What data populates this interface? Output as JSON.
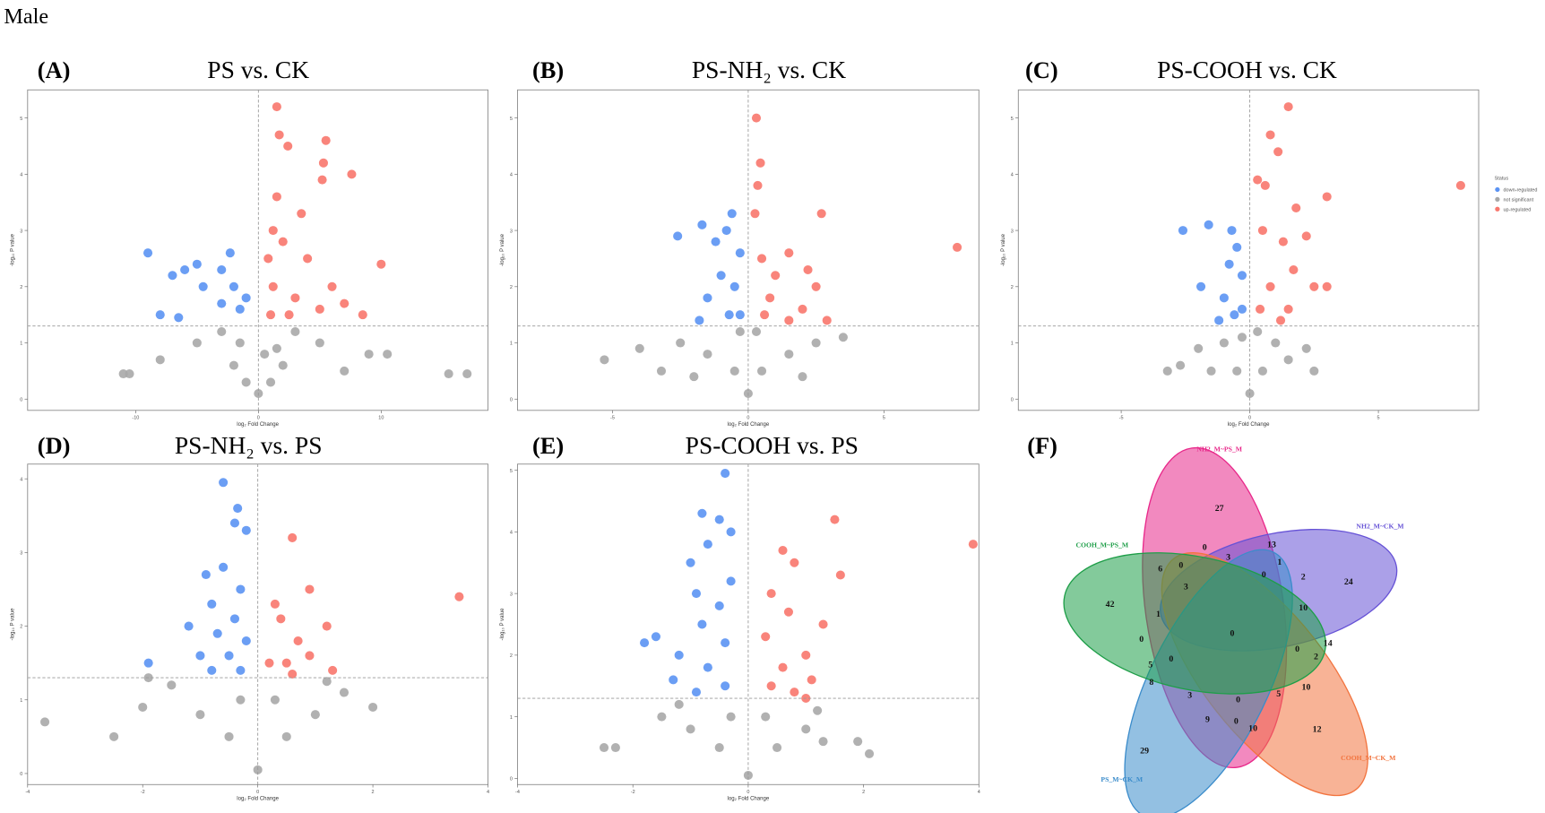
{
  "title": "Male",
  "chart_data": [
    {
      "type": "scatter",
      "panel": "(A)",
      "title": "PS vs. CK",
      "xlabel": "log₂ Fold Change",
      "ylabel": "-log₁₀ P value",
      "xlim": [
        -18.8,
        18.7
      ],
      "ylim": [
        -0.2,
        5.5
      ],
      "xticks": [
        -10,
        0,
        10
      ],
      "yticks": [
        0,
        1,
        2,
        3,
        4,
        5
      ],
      "hlines": [
        1.3
      ],
      "vlines": [
        0
      ],
      "series": [
        {
          "name": "not significant",
          "color": "#a8a8a8",
          "x": [
            -11,
            -10.5,
            -8,
            0,
            -2,
            2,
            -5,
            5,
            7,
            9,
            10.5,
            15.5,
            17,
            -1,
            1,
            3,
            -3,
            0.5,
            -1.5,
            1.5
          ],
          "values": [
            0.45,
            0.45,
            0.7,
            0.1,
            0.6,
            0.6,
            1.0,
            1.0,
            0.5,
            0.8,
            0.8,
            0.45,
            0.45,
            0.3,
            0.3,
            1.2,
            1.2,
            0.8,
            1.0,
            0.9
          ]
        },
        {
          "name": "down-regulated",
          "color": "#5b93f3",
          "x": [
            -9,
            -5,
            -3,
            -2.3,
            -6,
            -7,
            -2,
            -4.5,
            -3,
            -8,
            -6.5,
            -1.5,
            -1
          ],
          "values": [
            2.6,
            2.4,
            2.3,
            2.6,
            2.3,
            2.2,
            2.0,
            2.0,
            1.7,
            1.5,
            1.45,
            1.6,
            1.8
          ]
        },
        {
          "name": "up-regulated",
          "color": "#f8776d",
          "x": [
            1.5,
            1.7,
            2.4,
            5.5,
            5.3,
            5.2,
            7.6,
            1.5,
            3.5,
            2,
            4,
            10,
            6,
            1.2,
            3,
            7,
            8.5,
            1,
            2.5,
            5,
            0.8,
            1.2
          ],
          "values": [
            5.2,
            4.7,
            4.5,
            4.6,
            4.2,
            3.9,
            4.0,
            3.6,
            3.3,
            2.8,
            2.5,
            2.4,
            2.0,
            2.0,
            1.8,
            1.7,
            1.5,
            1.5,
            1.5,
            1.6,
            2.5,
            3.0
          ]
        }
      ]
    },
    {
      "type": "scatter",
      "panel": "(B)",
      "title": "PS-NH₂ vs. CK",
      "xlabel": "log₂ Fold Change",
      "ylabel": "-log₁₀ P value",
      "xlim": [
        -8.5,
        8.5
      ],
      "ylim": [
        -0.2,
        5.5
      ],
      "xticks": [
        -5,
        0,
        5
      ],
      "yticks": [
        0,
        1,
        2,
        3,
        4,
        5
      ],
      "hlines": [
        1.3
      ],
      "vlines": [
        0
      ],
      "series": [
        {
          "name": "not significant",
          "color": "#a8a8a8",
          "x": [
            -5.3,
            -4,
            -3.2,
            -2.5,
            -1.5,
            -0.5,
            0,
            0.5,
            1.5,
            2.5,
            3.5,
            -2,
            2,
            0.3,
            -0.3
          ],
          "values": [
            0.7,
            0.9,
            0.5,
            1.0,
            0.8,
            0.5,
            0.1,
            0.5,
            0.8,
            1.0,
            1.1,
            0.4,
            0.4,
            1.2,
            1.2
          ]
        },
        {
          "name": "down-regulated",
          "color": "#5b93f3",
          "x": [
            -2.6,
            -1.7,
            -0.6,
            -0.8,
            -1.2,
            -0.3,
            -1,
            -0.5,
            -1.5,
            -0.7,
            -1.8,
            -0.3
          ],
          "values": [
            2.9,
            3.1,
            3.3,
            3.0,
            2.8,
            2.6,
            2.2,
            2.0,
            1.8,
            1.5,
            1.4,
            1.5
          ]
        },
        {
          "name": "up-regulated",
          "color": "#f8776d",
          "x": [
            0.3,
            0.45,
            0.35,
            0.25,
            2.7,
            7.7,
            1.5,
            2.2,
            2.5,
            1,
            0.8,
            2,
            1.5,
            2.9,
            0.5,
            0.6
          ],
          "values": [
            5.0,
            4.2,
            3.8,
            3.3,
            3.3,
            2.7,
            2.6,
            2.3,
            2.0,
            2.2,
            1.8,
            1.6,
            1.4,
            1.4,
            2.5,
            1.5
          ]
        }
      ]
    },
    {
      "type": "scatter",
      "panel": "(C)",
      "title": "PS-COOH vs. CK",
      "xlabel": "log₂ Fold Change",
      "ylabel": "-log₁₀ P value",
      "xlim": [
        -9.0,
        8.9
      ],
      "ylim": [
        -0.2,
        5.5
      ],
      "xticks": [
        -5,
        0,
        5
      ],
      "yticks": [
        0,
        1,
        2,
        3,
        4,
        5
      ],
      "hlines": [
        1.3
      ],
      "vlines": [
        0
      ],
      "legend": "right",
      "legend_title": "Status",
      "series": [
        {
          "name": "down-regulated",
          "color": "#5b93f3",
          "x": [
            -2.6,
            -1.6,
            -0.7,
            -0.5,
            -0.8,
            -0.3,
            -1.9,
            -1.0,
            -0.6,
            -1.2,
            -0.3
          ],
          "values": [
            3.0,
            3.1,
            3.0,
            2.7,
            2.4,
            2.2,
            2.0,
            1.8,
            1.5,
            1.4,
            1.6
          ]
        },
        {
          "name": "not significant",
          "color": "#a8a8a8",
          "x": [
            -3.2,
            -2,
            -1.5,
            -0.5,
            0,
            0.5,
            1.5,
            2.2,
            2.5,
            -2.7,
            0.3,
            -0.3,
            1,
            -1
          ],
          "values": [
            0.5,
            0.9,
            0.5,
            0.5,
            0.1,
            0.5,
            0.7,
            0.9,
            0.5,
            0.6,
            1.2,
            1.1,
            1.0,
            1.0
          ]
        },
        {
          "name": "up-regulated",
          "color": "#f8776d",
          "x": [
            1.5,
            0.8,
            1.1,
            0.3,
            0.6,
            8.2,
            3,
            1.8,
            0.5,
            1.3,
            2.2,
            1.7,
            2.5,
            3,
            0.8,
            1.5,
            0.4,
            1.2
          ],
          "values": [
            5.2,
            4.7,
            4.4,
            3.9,
            3.8,
            3.8,
            3.6,
            3.4,
            3.0,
            2.8,
            2.9,
            2.3,
            2.0,
            2.0,
            2.0,
            1.6,
            1.6,
            1.4
          ]
        }
      ]
    },
    {
      "type": "scatter",
      "panel": "(D)",
      "title": "PS-NH₂ vs. PS",
      "xlabel": "log₂ Fold Change",
      "ylabel": "-log₁₀ P value",
      "xlim": [
        -4,
        4
      ],
      "ylim": [
        -0.15,
        4.2
      ],
      "xticks": [
        -4,
        -2,
        0,
        2,
        4
      ],
      "yticks": [
        0,
        1,
        2,
        3,
        4
      ],
      "hlines": [
        1.3
      ],
      "vlines": [
        0
      ],
      "series": [
        {
          "name": "not significant",
          "color": "#a8a8a8",
          "x": [
            -3.7,
            -2.5,
            -2,
            -1.5,
            -1,
            -0.5,
            0,
            0.5,
            1,
            1.5,
            2,
            -1.9,
            1.2,
            -0.3,
            0.3
          ],
          "values": [
            0.7,
            0.5,
            0.9,
            1.2,
            0.8,
            0.5,
            0.05,
            0.5,
            0.8,
            1.1,
            0.9,
            1.3,
            1.25,
            1.0,
            1.0
          ]
        },
        {
          "name": "down-regulated",
          "color": "#5b93f3",
          "x": [
            -0.6,
            -0.35,
            -0.4,
            -0.2,
            -0.9,
            -0.6,
            -0.3,
            -0.8,
            -0.4,
            -1.2,
            -0.7,
            -1.0,
            -0.5,
            -1.9,
            -0.8,
            -0.3,
            -0.2
          ],
          "values": [
            3.95,
            3.6,
            3.4,
            3.3,
            2.7,
            2.8,
            2.5,
            2.3,
            2.1,
            2.0,
            1.9,
            1.6,
            1.6,
            1.5,
            1.4,
            1.4,
            1.8
          ]
        },
        {
          "name": "up-regulated",
          "color": "#f8776d",
          "x": [
            0.6,
            3.5,
            0.9,
            0.3,
            0.4,
            1.2,
            0.7,
            0.5,
            0.9,
            1.3,
            0.2,
            0.6
          ],
          "values": [
            3.2,
            2.4,
            2.5,
            2.3,
            2.1,
            2.0,
            1.8,
            1.5,
            1.6,
            1.4,
            1.5,
            1.35
          ]
        }
      ]
    },
    {
      "type": "scatter",
      "panel": "(E)",
      "title": "PS-COOH vs. PS",
      "xlabel": "log₂ Fold Change",
      "ylabel": "-log₁₀ P value",
      "xlim": [
        -4,
        4
      ],
      "ylim": [
        -0.1,
        5.1
      ],
      "xticks": [
        -4,
        -2,
        0,
        2,
        4
      ],
      "yticks": [
        0,
        1,
        2,
        3,
        4,
        5
      ],
      "hlines": [
        1.3
      ],
      "vlines": [
        0
      ],
      "series": [
        {
          "name": "not significant",
          "color": "#a8a8a8",
          "x": [
            -2.5,
            -2.3,
            -1.5,
            -1,
            -0.5,
            0,
            0.5,
            1,
            1.3,
            1.9,
            1.2,
            -1.2,
            0.3,
            -0.3,
            2.1
          ],
          "values": [
            0.5,
            0.5,
            1.0,
            0.8,
            0.5,
            0.05,
            0.5,
            0.8,
            0.6,
            0.6,
            1.1,
            1.2,
            1.0,
            1.0,
            0.4
          ]
        },
        {
          "name": "down-regulated",
          "color": "#5b93f3",
          "x": [
            -0.4,
            -0.8,
            -0.5,
            -0.3,
            -0.7,
            -1,
            -0.3,
            -0.9,
            -0.5,
            -0.8,
            -1.6,
            -1.8,
            -0.4,
            -1.2,
            -0.7,
            -1.3,
            -0.4,
            -0.9
          ],
          "values": [
            4.95,
            4.3,
            4.2,
            4.0,
            3.8,
            3.5,
            3.2,
            3.0,
            2.8,
            2.5,
            2.3,
            2.2,
            2.2,
            2.0,
            1.8,
            1.6,
            1.5,
            1.4
          ]
        },
        {
          "name": "up-regulated",
          "color": "#f8776d",
          "x": [
            1.5,
            3.9,
            0.6,
            0.8,
            1.6,
            0.4,
            0.7,
            1.3,
            0.3,
            1.0,
            0.6,
            1.1,
            0.4,
            0.8,
            1.0
          ],
          "values": [
            4.2,
            3.8,
            3.7,
            3.5,
            3.3,
            3.0,
            2.7,
            2.5,
            2.3,
            2.0,
            1.8,
            1.6,
            1.5,
            1.4,
            1.3
          ]
        }
      ]
    },
    {
      "type": "venn",
      "panel": "(F)",
      "sets": [
        {
          "name": "NH2_M~PS_M",
          "color": "#e8288a"
        },
        {
          "name": "NH2_M~CK_M",
          "color": "#6652d6"
        },
        {
          "name": "COOH_M~CK_M",
          "color": "#f2743f"
        },
        {
          "name": "PS_M~CK_M",
          "color": "#3b8ccb"
        },
        {
          "name": "COOH_M~PS_M",
          "color": "#1e9e48"
        }
      ],
      "values": [
        27,
        0,
        3,
        13,
        1,
        0,
        2,
        24,
        6,
        0,
        3,
        42,
        1,
        10,
        0,
        0,
        14,
        0,
        2,
        5,
        0,
        8,
        10,
        3,
        0,
        5,
        9,
        0,
        10,
        12,
        29
      ]
    }
  ]
}
